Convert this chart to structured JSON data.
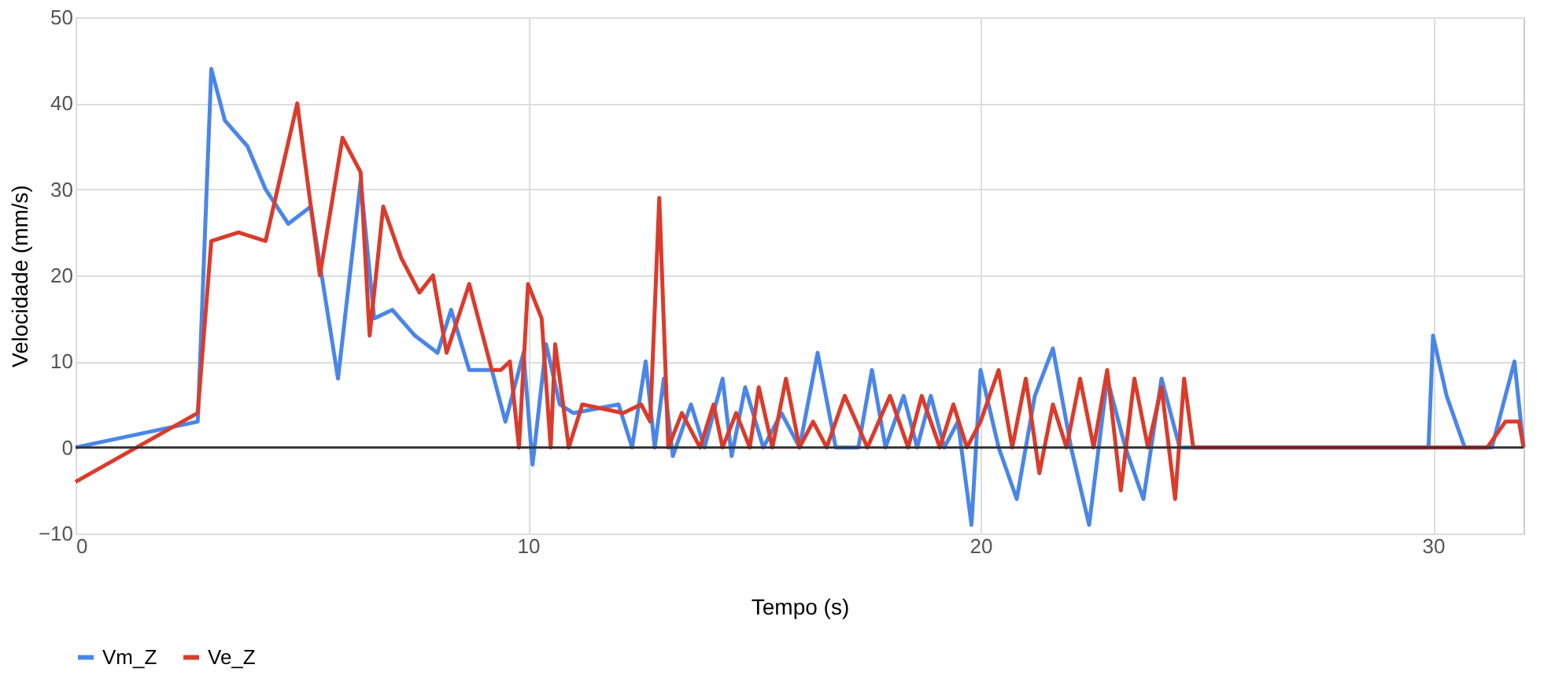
{
  "chart_data": {
    "type": "line",
    "xlabel": "Tempo (s)",
    "ylabel": "Velocidade (mm/s)",
    "xlim": [
      0,
      32
    ],
    "xticks": [
      0,
      10,
      20,
      30
    ],
    "ylim": [
      -10,
      50
    ],
    "yticks": [
      -10,
      0,
      10,
      20,
      30,
      40,
      50
    ],
    "grid": true,
    "legend": "bottom",
    "line_style": "solid",
    "marker": "none",
    "ref_lines": [
      {
        "axis": "y",
        "value": 0,
        "color": "#333333"
      }
    ],
    "series": [
      {
        "name": "Vm_Z",
        "color": "#4a86e8",
        "x": [
          0,
          2.7,
          3.0,
          3.3,
          3.8,
          4.2,
          4.7,
          5.2,
          5.8,
          6.3,
          6.6,
          7.0,
          7.5,
          8.0,
          8.3,
          8.7,
          9.2,
          9.5,
          9.9,
          10.1,
          10.4,
          10.7,
          11.0,
          12,
          12.3,
          12.6,
          12.8,
          13.0,
          13.2,
          13.6,
          13.9,
          14.3,
          14.5,
          14.8,
          15.2,
          15.6,
          16.0,
          16.4,
          16.8,
          17.3,
          17.6,
          17.9,
          18.3,
          18.6,
          18.9,
          19.2,
          19.5,
          19.8,
          20.0,
          20.4,
          20.8,
          21.2,
          21.6,
          22.0,
          22.4,
          22.8,
          23.2,
          23.6,
          24.0,
          24.4,
          24.8,
          29.9,
          30.0,
          30.3,
          30.7,
          31.3,
          31.8,
          32
        ],
        "values": [
          0,
          3,
          44,
          38,
          35,
          30,
          26,
          28,
          8,
          31,
          15,
          16,
          13,
          11,
          16,
          9,
          9,
          3,
          11,
          -2,
          12,
          5,
          4,
          5,
          0,
          10,
          0,
          8,
          -1,
          5,
          0,
          8,
          -1,
          7,
          0,
          4,
          0,
          11,
          0,
          0,
          9,
          0,
          6,
          0,
          6,
          0,
          3,
          -9,
          9,
          0,
          -6,
          6,
          11.5,
          0,
          -9,
          8,
          0,
          -6,
          8,
          0,
          0,
          0,
          13,
          6,
          0,
          0,
          10,
          0
        ]
      },
      {
        "name": "Ve_Z",
        "color": "#db3b2b",
        "x": [
          0,
          2.7,
          3.0,
          3.6,
          4.2,
          4.9,
          5.4,
          5.9,
          6.3,
          6.5,
          6.8,
          7.2,
          7.6,
          7.9,
          8.2,
          8.7,
          9.2,
          9.4,
          9.6,
          9.8,
          10.0,
          10.3,
          10.5,
          10.6,
          10.9,
          11.2,
          12.1,
          12.5,
          12.7,
          12.9,
          13.1,
          13.4,
          13.8,
          14.1,
          14.3,
          14.6,
          14.9,
          15.1,
          15.4,
          15.7,
          16.0,
          16.3,
          16.6,
          17.0,
          17.5,
          18.0,
          18.4,
          18.7,
          19.1,
          19.4,
          19.7,
          20.0,
          20.4,
          20.7,
          21.0,
          21.3,
          21.6,
          21.9,
          22.2,
          22.5,
          22.8,
          23.1,
          23.4,
          23.7,
          24.0,
          24.3,
          24.5,
          24.7,
          31.2,
          31.6,
          31.9,
          32
        ],
        "values": [
          -4,
          4,
          24,
          25,
          24,
          40,
          20,
          36,
          32,
          13,
          28,
          22,
          18,
          20,
          11,
          19,
          9,
          9,
          10,
          0,
          19,
          15,
          0,
          12,
          0,
          5,
          4,
          5,
          3,
          29,
          0,
          4,
          0,
          5,
          0,
          4,
          0,
          7,
          0,
          8,
          0,
          3,
          0,
          6,
          0,
          6,
          0,
          6,
          0,
          5,
          0,
          3,
          9,
          0,
          8,
          -3,
          5,
          0,
          8,
          0,
          9,
          -5,
          8,
          0,
          7,
          -6,
          8,
          0,
          0,
          3,
          3,
          0
        ]
      }
    ]
  }
}
